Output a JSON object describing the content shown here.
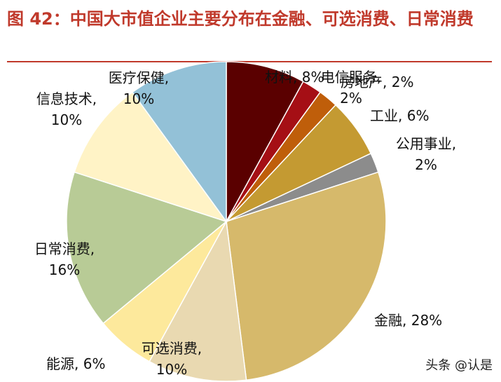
{
  "chart_data": {
    "type": "pie",
    "title": "图 42：中国大市值企业主要分布在金融、可选消费、日常消费",
    "values": [
      8,
      2,
      2,
      6,
      2,
      28,
      10,
      6,
      16,
      10,
      10
    ],
    "value_labels": [
      "材料, 8%",
      "电信服务, 2%",
      "房地产, 2%",
      "工业, 6%",
      "公用事业, 2%",
      "金融, 28%",
      "可选消费, 10%",
      "能源, 6%",
      "日常消费, 16%",
      "信息技术, 10%",
      "医疗保健, 10%"
    ],
    "colors": [
      "#5a0000",
      "#a50f15",
      "#bf5e0a",
      "#c49a32",
      "#8c8c8c",
      "#d6b96b",
      "#e9d9b1",
      "#fde99c",
      "#b8cb96",
      "#fff3c6",
      "#93c1d7"
    ],
    "watermark": "头条 @认是"
  }
}
